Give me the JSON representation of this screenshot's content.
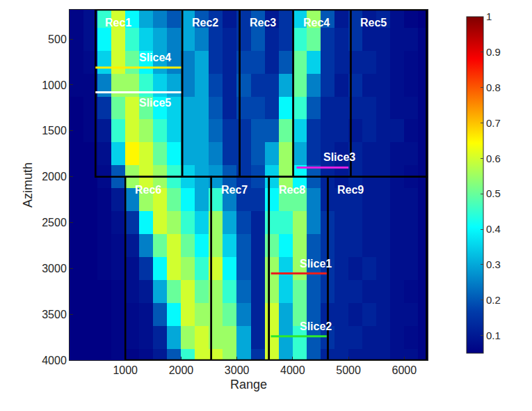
{
  "chart_data": {
    "type": "heatmap",
    "x_label": "Range",
    "y_label": "Azimuth",
    "xlim": [
      0,
      6420
    ],
    "ylim": [
      4000,
      180
    ],
    "xticks": [
      1000,
      2000,
      3000,
      4000,
      5000,
      6000
    ],
    "yticks": [
      500,
      1000,
      1500,
      2000,
      2500,
      3000,
      3500,
      4000
    ],
    "color": "Jet",
    "clim": [
      0.05,
      1
    ],
    "cticks": [
      0.1,
      0.2,
      0.3,
      0.4,
      0.5,
      0.6,
      0.7,
      0.8,
      0.9,
      1
    ],
    "x": [
      125,
      375,
      625,
      875,
      1125,
      1375,
      1625,
      1875,
      2125,
      2375,
      2625,
      2875,
      3125,
      3375,
      3625,
      3875,
      4125,
      4375,
      4625,
      4875,
      5125,
      5375,
      5625,
      5875,
      6125,
      6375
    ],
    "y": [
      250,
      500,
      750,
      1000,
      1250,
      1500,
      1750,
      2000,
      2250,
      2500,
      2750,
      3000,
      3250,
      3500,
      3750,
      4000
    ],
    "z": [
      [
        0.06,
        0.08,
        0.45,
        0.6,
        0.4,
        0.3,
        0.25,
        0.2,
        0.3,
        0.2,
        0.15,
        0.1,
        0.15,
        0.2,
        0.1,
        0.15,
        0.35,
        0.55,
        0.2,
        0.1,
        0.15,
        0.1,
        0.12,
        0.08,
        0.06,
        0.05
      ],
      [
        0.06,
        0.08,
        0.4,
        0.6,
        0.45,
        0.35,
        0.3,
        0.25,
        0.3,
        0.25,
        0.15,
        0.12,
        0.15,
        0.2,
        0.12,
        0.15,
        0.45,
        0.5,
        0.15,
        0.12,
        0.15,
        0.1,
        0.1,
        0.08,
        0.08,
        0.06
      ],
      [
        0.06,
        0.07,
        0.35,
        0.6,
        0.5,
        0.4,
        0.3,
        0.25,
        0.25,
        0.3,
        0.15,
        0.12,
        0.18,
        0.18,
        0.12,
        0.2,
        0.5,
        0.35,
        0.15,
        0.12,
        0.12,
        0.12,
        0.1,
        0.08,
        0.07,
        0.06
      ],
      [
        0.06,
        0.06,
        0.25,
        0.55,
        0.55,
        0.45,
        0.35,
        0.3,
        0.25,
        0.3,
        0.18,
        0.12,
        0.2,
        0.15,
        0.15,
        0.3,
        0.5,
        0.25,
        0.15,
        0.1,
        0.14,
        0.1,
        0.1,
        0.08,
        0.07,
        0.06
      ],
      [
        0.05,
        0.06,
        0.15,
        0.5,
        0.6,
        0.5,
        0.4,
        0.35,
        0.3,
        0.3,
        0.2,
        0.12,
        0.18,
        0.18,
        0.15,
        0.4,
        0.45,
        0.2,
        0.12,
        0.12,
        0.12,
        0.12,
        0.1,
        0.08,
        0.08,
        0.06
      ],
      [
        0.05,
        0.06,
        0.1,
        0.45,
        0.6,
        0.55,
        0.45,
        0.35,
        0.3,
        0.3,
        0.22,
        0.15,
        0.15,
        0.2,
        0.2,
        0.5,
        0.35,
        0.15,
        0.12,
        0.12,
        0.1,
        0.12,
        0.1,
        0.1,
        0.07,
        0.06
      ],
      [
        0.05,
        0.05,
        0.08,
        0.35,
        0.65,
        0.6,
        0.5,
        0.4,
        0.3,
        0.3,
        0.25,
        0.15,
        0.15,
        0.2,
        0.3,
        0.55,
        0.3,
        0.15,
        0.12,
        0.1,
        0.12,
        0.1,
        0.1,
        0.08,
        0.08,
        0.06
      ],
      [
        0.05,
        0.05,
        0.07,
        0.2,
        0.55,
        0.6,
        0.55,
        0.45,
        0.35,
        0.3,
        0.28,
        0.2,
        0.15,
        0.18,
        0.35,
        0.55,
        0.4,
        0.2,
        0.12,
        0.1,
        0.12,
        0.1,
        0.1,
        0.08,
        0.07,
        0.06
      ],
      [
        0.05,
        0.05,
        0.06,
        0.1,
        0.25,
        0.55,
        0.6,
        0.5,
        0.4,
        0.3,
        0.45,
        0.25,
        0.15,
        0.15,
        0.4,
        0.5,
        0.5,
        0.25,
        0.12,
        0.12,
        0.12,
        0.1,
        0.1,
        0.08,
        0.08,
        0.06
      ],
      [
        0.05,
        0.05,
        0.06,
        0.08,
        0.15,
        0.4,
        0.6,
        0.55,
        0.45,
        0.35,
        0.55,
        0.3,
        0.18,
        0.12,
        0.45,
        0.45,
        0.55,
        0.25,
        0.15,
        0.12,
        0.12,
        0.1,
        0.1,
        0.08,
        0.08,
        0.06
      ],
      [
        0.05,
        0.05,
        0.06,
        0.07,
        0.1,
        0.25,
        0.5,
        0.6,
        0.5,
        0.4,
        0.55,
        0.35,
        0.2,
        0.12,
        0.5,
        0.4,
        0.55,
        0.2,
        0.15,
        0.12,
        0.12,
        0.1,
        0.1,
        0.08,
        0.08,
        0.06
      ],
      [
        0.05,
        0.05,
        0.06,
        0.07,
        0.08,
        0.15,
        0.4,
        0.6,
        0.55,
        0.45,
        0.6,
        0.4,
        0.2,
        0.12,
        0.55,
        0.35,
        0.55,
        0.2,
        0.15,
        0.12,
        0.1,
        0.12,
        0.1,
        0.08,
        0.08,
        0.06
      ],
      [
        0.05,
        0.05,
        0.05,
        0.06,
        0.08,
        0.1,
        0.3,
        0.5,
        0.6,
        0.5,
        0.55,
        0.45,
        0.22,
        0.12,
        0.55,
        0.35,
        0.5,
        0.2,
        0.15,
        0.12,
        0.12,
        0.1,
        0.1,
        0.08,
        0.07,
        0.06
      ],
      [
        0.05,
        0.05,
        0.05,
        0.06,
        0.07,
        0.08,
        0.2,
        0.4,
        0.6,
        0.55,
        0.55,
        0.5,
        0.25,
        0.12,
        0.6,
        0.3,
        0.5,
        0.2,
        0.12,
        0.12,
        0.1,
        0.12,
        0.1,
        0.08,
        0.08,
        0.06
      ],
      [
        0.05,
        0.05,
        0.05,
        0.06,
        0.07,
        0.08,
        0.12,
        0.3,
        0.55,
        0.6,
        0.55,
        0.55,
        0.3,
        0.12,
        0.6,
        0.3,
        0.45,
        0.2,
        0.15,
        0.12,
        0.12,
        0.1,
        0.1,
        0.08,
        0.07,
        0.06
      ],
      [
        0.05,
        0.05,
        0.05,
        0.06,
        0.06,
        0.07,
        0.1,
        0.2,
        0.45,
        0.6,
        0.6,
        0.55,
        0.3,
        0.15,
        0.6,
        0.3,
        0.45,
        0.2,
        0.12,
        0.12,
        0.1,
        0.1,
        0.1,
        0.08,
        0.08,
        0.06
      ]
    ],
    "rectangles": [
      {
        "label": "Rec1",
        "x0": 465,
        "x1": 2020,
        "y0": 180,
        "y1": 2000
      },
      {
        "label": "Rec2",
        "x0": 2020,
        "x1": 3050,
        "y0": 180,
        "y1": 2000
      },
      {
        "label": "Rec3",
        "x0": 3050,
        "x1": 4010,
        "y0": 180,
        "y1": 2000
      },
      {
        "label": "Rec4",
        "x0": 4010,
        "x1": 5040,
        "y0": 180,
        "y1": 2000
      },
      {
        "label": "Rec5",
        "x0": 5040,
        "x1": 6400,
        "y0": 180,
        "y1": 2000
      },
      {
        "label": "Rec6",
        "x0": 1000,
        "x1": 2540,
        "y0": 2000,
        "y1": 4000
      },
      {
        "label": "Rec7",
        "x0": 2540,
        "x1": 3575,
        "y0": 2000,
        "y1": 4000
      },
      {
        "label": "Rec8",
        "x0": 3575,
        "x1": 4630,
        "y0": 2000,
        "y1": 4000
      },
      {
        "label": "Rec9",
        "x0": 4630,
        "x1": 6400,
        "y0": 2000,
        "y1": 4000
      }
    ],
    "slices": [
      {
        "label": "Slice1",
        "color": "#e8201e",
        "x0": 3610,
        "x1": 4610,
        "y": 3055
      },
      {
        "label": "Slice2",
        "color": "#2ee82e",
        "x0": 3610,
        "x1": 4610,
        "y": 3740
      },
      {
        "label": "Slice3",
        "color": "#e020e0",
        "x0": 4070,
        "x1": 5000,
        "y": 1900
      },
      {
        "label": "Slice4",
        "color": "#ffee00",
        "x0": 465,
        "x1": 2000,
        "y": 810
      },
      {
        "label": "Slice5",
        "color": "#ffffff",
        "x0": 465,
        "x1": 2000,
        "y": 1080
      }
    ]
  }
}
